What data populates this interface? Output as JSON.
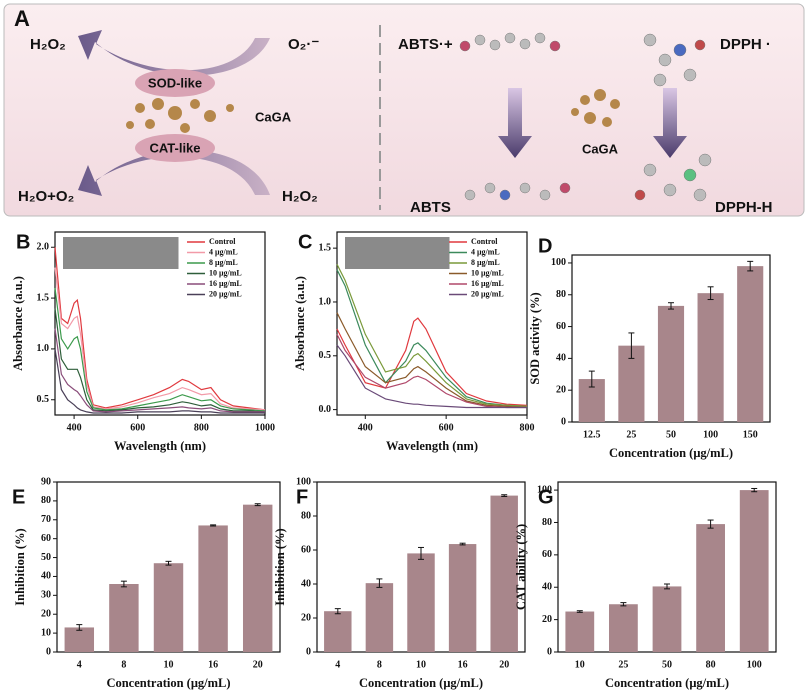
{
  "diagram": {
    "panel_label": "A",
    "h2o2_top": "H₂O₂",
    "superoxide": "O₂·⁻",
    "sod_like": "SOD-like",
    "cagaleft": "CaGA",
    "cat_like": "CAT-like",
    "h2o_o2": "H₂O+O₂",
    "h2o2_bottom": "H₂O₂",
    "abts_radical": "ABTS·+",
    "dpph_radical": "DPPH ·",
    "caga_right": "CaGA",
    "abts": "ABTS",
    "dpph_h": "DPPH-H"
  },
  "chart_data": [
    {
      "type": "line",
      "panel_label": "B",
      "x_label": "Wavelength (nm)",
      "y_label": "Absorbance (a.u.)",
      "legend": "upper right",
      "x": [
        340,
        360,
        380,
        400,
        410,
        420,
        440,
        460,
        500,
        550,
        600,
        650,
        700,
        740,
        760,
        800,
        830,
        860,
        900,
        950,
        1000
      ],
      "xlim": [
        340,
        1000
      ],
      "xticks": [
        400,
        600,
        800,
        1000
      ],
      "ylim": [
        0.35,
        2.15
      ],
      "yticks": [
        0.5,
        {
          "value": 1,
          "label": "1.0"
        },
        1.5,
        {
          "value": 2,
          "label": "2.0"
        }
      ],
      "series": [
        {
          "name": "Control",
          "color": "#e0393e",
          "values": [
            2.0,
            1.3,
            1.25,
            1.45,
            1.48,
            1.3,
            0.7,
            0.45,
            0.42,
            0.45,
            0.5,
            0.55,
            0.62,
            0.7,
            0.68,
            0.6,
            0.62,
            0.5,
            0.44,
            0.42,
            0.4
          ]
        },
        {
          "name": "4 μg/mL",
          "color": "#f29aa8",
          "values": [
            1.8,
            1.25,
            1.2,
            1.3,
            1.32,
            1.15,
            0.65,
            0.43,
            0.41,
            0.43,
            0.47,
            0.52,
            0.56,
            0.62,
            0.6,
            0.55,
            0.56,
            0.46,
            0.42,
            0.41,
            0.4
          ]
        },
        {
          "name": "8 μg/mL",
          "color": "#3c9a4c",
          "values": [
            1.6,
            1.1,
            1.0,
            1.1,
            1.12,
            1.0,
            0.58,
            0.42,
            0.4,
            0.41,
            0.44,
            0.47,
            0.5,
            0.55,
            0.53,
            0.49,
            0.5,
            0.44,
            0.41,
            0.4,
            0.39
          ]
        },
        {
          "name": "10 μg/mL",
          "color": "#2e5e3a",
          "values": [
            1.4,
            0.9,
            0.8,
            0.8,
            0.8,
            0.72,
            0.5,
            0.4,
            0.39,
            0.4,
            0.42,
            0.43,
            0.45,
            0.48,
            0.47,
            0.44,
            0.45,
            0.41,
            0.39,
            0.39,
            0.38
          ]
        },
        {
          "name": "16 μg/mL",
          "color": "#8a4d7a",
          "values": [
            1.2,
            0.75,
            0.65,
            0.6,
            0.58,
            0.54,
            0.45,
            0.39,
            0.38,
            0.39,
            0.4,
            0.41,
            0.42,
            0.43,
            0.42,
            0.41,
            0.42,
            0.39,
            0.38,
            0.38,
            0.38
          ]
        },
        {
          "name": "20 μg/mL",
          "color": "#4a4058",
          "values": [
            1.0,
            0.6,
            0.5,
            0.45,
            0.42,
            0.4,
            0.38,
            0.37,
            0.37,
            0.37,
            0.38,
            0.38,
            0.38,
            0.39,
            0.39,
            0.38,
            0.38,
            0.37,
            0.37,
            0.37,
            0.37
          ]
        }
      ]
    },
    {
      "type": "line",
      "panel_label": "C",
      "x_label": "Wavelength (nm)",
      "y_label": "Absorbance (a.u.)",
      "legend": "upper right",
      "x": [
        330,
        350,
        400,
        450,
        500,
        520,
        530,
        550,
        600,
        650,
        700,
        750,
        800
      ],
      "xlim": [
        330,
        800
      ],
      "xticks": [
        400,
        600,
        800
      ],
      "ylim": [
        -0.05,
        1.65
      ],
      "yticks": [
        {
          "value": 0,
          "label": "0.0"
        },
        0.5,
        {
          "value": 1,
          "label": "1.0"
        },
        1.5
      ],
      "series": [
        {
          "name": "Control",
          "color": "#e0393e",
          "values": [
            0.75,
            0.6,
            0.25,
            0.2,
            0.55,
            0.82,
            0.85,
            0.75,
            0.35,
            0.15,
            0.08,
            0.05,
            0.04
          ]
        },
        {
          "name": "4 μg/mL",
          "color": "#3c8a5c",
          "values": [
            1.3,
            1.15,
            0.6,
            0.25,
            0.45,
            0.6,
            0.62,
            0.55,
            0.3,
            0.12,
            0.06,
            0.04,
            0.03
          ]
        },
        {
          "name": "8 μg/mL",
          "color": "#7a9a3a",
          "values": [
            1.35,
            1.2,
            0.7,
            0.35,
            0.4,
            0.5,
            0.52,
            0.45,
            0.25,
            0.1,
            0.05,
            0.04,
            0.03
          ]
        },
        {
          "name": "10 μg/mL",
          "color": "#8a5a2a",
          "values": [
            0.9,
            0.75,
            0.4,
            0.25,
            0.3,
            0.38,
            0.4,
            0.35,
            0.2,
            0.08,
            0.04,
            0.03,
            0.02
          ]
        },
        {
          "name": "16 μg/mL",
          "color": "#b0486a",
          "values": [
            0.7,
            0.55,
            0.3,
            0.2,
            0.25,
            0.3,
            0.31,
            0.28,
            0.15,
            0.07,
            0.03,
            0.02,
            0.02
          ]
        },
        {
          "name": "20 μg/mL",
          "color": "#6a4a78",
          "values": [
            0.6,
            0.5,
            0.2,
            0.1,
            0.06,
            0.05,
            0.05,
            0.04,
            0.03,
            0.02,
            0.02,
            0.02,
            0.02
          ]
        }
      ]
    },
    {
      "type": "bar",
      "panel_label": "D",
      "x_label": "Concentration (μg/mL)",
      "y_label": "SOD activity (%)",
      "color": "#a8868b",
      "categories": [
        "12.5",
        "25",
        "50",
        "100",
        "150"
      ],
      "values": [
        27,
        48,
        73,
        81,
        98
      ],
      "errors": [
        5,
        8,
        2,
        4,
        3
      ],
      "ylim": [
        0,
        105
      ],
      "yticks": [
        0,
        20,
        40,
        60,
        80,
        100
      ]
    },
    {
      "type": "bar",
      "panel_label": "E",
      "x_label": "Concentration (μg/mL)",
      "y_label": "Inhibition (%)",
      "color": "#a8868b",
      "categories": [
        "4",
        "8",
        "10",
        "16",
        "20"
      ],
      "values": [
        13,
        36,
        47,
        67,
        78
      ],
      "errors": [
        1.5,
        1.5,
        1,
        0.3,
        0.5
      ],
      "ylim": [
        0,
        90
      ],
      "yticks": [
        0,
        10,
        20,
        30,
        40,
        50,
        60,
        70,
        80,
        90
      ]
    },
    {
      "type": "bar",
      "panel_label": "F",
      "x_label": "Concentration (μg/mL)",
      "y_label": "Inhibition (%)",
      "color": "#a8868b",
      "categories": [
        "4",
        "8",
        "10",
        "16",
        "20"
      ],
      "values": [
        24,
        40.5,
        58,
        63.5,
        92
      ],
      "errors": [
        1.5,
        2.5,
        3.5,
        0.5,
        0.5
      ],
      "ylim": [
        0,
        100
      ],
      "yticks": [
        0,
        20,
        40,
        60,
        80,
        100
      ]
    },
    {
      "type": "bar",
      "panel_label": "G",
      "x_label": "Concentration (μg/mL)",
      "y_label": "CAT ability (%)",
      "color": "#a8868b",
      "categories": [
        "10",
        "25",
        "50",
        "80",
        "100"
      ],
      "values": [
        25,
        29.5,
        40.5,
        79,
        100
      ],
      "errors": [
        0.5,
        1,
        1.5,
        2.5,
        1
      ],
      "ylim": [
        0,
        105
      ],
      "yticks": [
        0,
        20,
        40,
        60,
        80,
        100
      ]
    }
  ]
}
